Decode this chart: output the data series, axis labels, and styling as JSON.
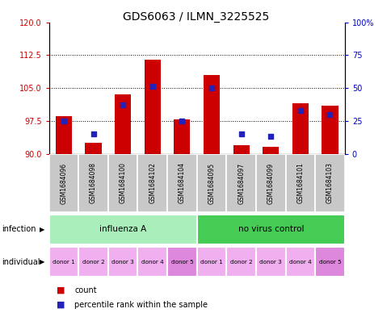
{
  "title": "GDS6063 / ILMN_3225525",
  "samples": [
    "GSM1684096",
    "GSM1684098",
    "GSM1684100",
    "GSM1684102",
    "GSM1684104",
    "GSM1684095",
    "GSM1684097",
    "GSM1684099",
    "GSM1684101",
    "GSM1684103"
  ],
  "count_values": [
    98.5,
    92.5,
    103.5,
    111.5,
    97.8,
    108.0,
    92.0,
    91.5,
    101.5,
    101.0
  ],
  "percentile_values": [
    25,
    15,
    37,
    51,
    25,
    50,
    15,
    13,
    33,
    30
  ],
  "ylim_left": [
    90,
    120
  ],
  "ylim_right": [
    0,
    100
  ],
  "yticks_left": [
    90,
    97.5,
    105,
    112.5,
    120
  ],
  "yticks_right": [
    0,
    25,
    50,
    75,
    100
  ],
  "yticklabels_right": [
    "0",
    "25",
    "50",
    "75",
    "100%"
  ],
  "grid_values": [
    97.5,
    105,
    112.5
  ],
  "bar_color": "#cc0000",
  "percentile_color": "#2222bb",
  "infection_groups": [
    {
      "label": "influenza A",
      "start": 0,
      "end": 5,
      "color": "#aaeebb"
    },
    {
      "label": "no virus control",
      "start": 5,
      "end": 10,
      "color": "#44cc55"
    }
  ],
  "individual_labels": [
    "donor 1",
    "donor 2",
    "donor 3",
    "donor 4",
    "donor 5",
    "donor 1",
    "donor 2",
    "donor 3",
    "donor 4",
    "donor 5"
  ],
  "individual_colors": [
    "#f0b0f0",
    "#f0b0f0",
    "#f0b0f0",
    "#f0b0f0",
    "#dd88dd",
    "#f0b0f0",
    "#f0b0f0",
    "#f0b0f0",
    "#f0b0f0",
    "#dd88dd"
  ],
  "infection_label": "infection",
  "individual_label": "individual",
  "legend_count_label": "count",
  "legend_percentile_label": "percentile rank within the sample",
  "title_fontsize": 10,
  "axis_label_color_left": "#cc0000",
  "axis_label_color_right": "#0000cc",
  "sample_bg_color": "#c8c8c8",
  "bar_width": 0.55
}
